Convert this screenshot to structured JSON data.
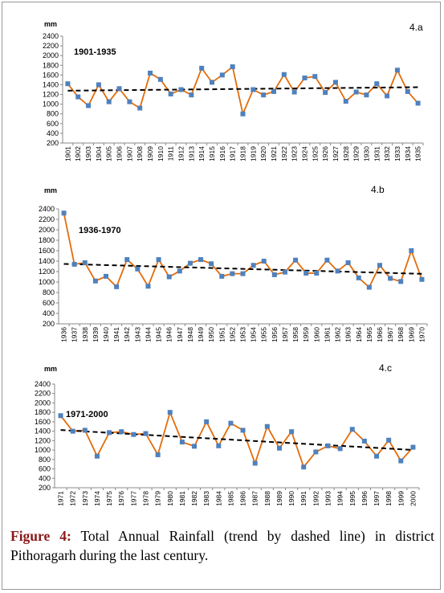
{
  "chart_data": [
    {
      "type": "line",
      "panel": "4.a",
      "subtitle": "1901-1935",
      "y_label": "mm",
      "categories": [
        "1901",
        "1902",
        "1903",
        "1904",
        "1905",
        "1906",
        "1907",
        "1908",
        "1909",
        "1910",
        "1911",
        "1912",
        "1913",
        "1914",
        "1915",
        "1916",
        "1917",
        "1918",
        "1919",
        "1920",
        "1921",
        "1922",
        "1923",
        "1924",
        "1925",
        "1926",
        "1927",
        "1928",
        "1929",
        "1930",
        "1931",
        "1932",
        "1933",
        "1934",
        "1935"
      ],
      "values": [
        1420,
        1150,
        970,
        1400,
        1050,
        1320,
        1050,
        920,
        1640,
        1510,
        1210,
        1300,
        1190,
        1740,
        1450,
        1600,
        1770,
        800,
        1300,
        1190,
        1260,
        1610,
        1250,
        1540,
        1570,
        1240,
        1450,
        1060,
        1250,
        1190,
        1420,
        1170,
        1700,
        1260,
        1020
      ],
      "color": "#e36c09",
      "marker_color": "#4f81bd",
      "trend_color": "#000000",
      "trend": true,
      "ylim": [
        200,
        2400
      ],
      "yticks": [
        200,
        400,
        600,
        800,
        1000,
        1200,
        1400,
        1600,
        1800,
        2000,
        2200,
        2400
      ]
    },
    {
      "type": "line",
      "panel": "4.b",
      "subtitle": "1936-1970",
      "y_label": "mm",
      "categories": [
        "1936",
        "1937",
        "1938",
        "1939",
        "1940",
        "1941",
        "1942",
        "1943",
        "1944",
        "1945",
        "1946",
        "1947",
        "1948",
        "1949",
        "1950",
        "1951",
        "1952",
        "1953",
        "1954",
        "1955",
        "1956",
        "1957",
        "1958",
        "1959",
        "1960",
        "1961",
        "1962",
        "1963",
        "1964",
        "1965",
        "1966",
        "1967",
        "1968",
        "1969",
        "1970"
      ],
      "values": [
        2320,
        1340,
        1370,
        1020,
        1110,
        910,
        1430,
        1250,
        920,
        1430,
        1100,
        1210,
        1360,
        1430,
        1350,
        1110,
        1160,
        1160,
        1320,
        1400,
        1140,
        1190,
        1420,
        1170,
        1170,
        1420,
        1210,
        1370,
        1080,
        900,
        1320,
        1070,
        1010,
        1600,
        1050
      ],
      "color": "#e36c09",
      "marker_color": "#4f81bd",
      "trend_color": "#000000",
      "trend": true,
      "ylim": [
        200,
        2400
      ],
      "yticks": [
        200,
        400,
        600,
        800,
        1000,
        1200,
        1400,
        1600,
        1800,
        2000,
        2200,
        2400
      ]
    },
    {
      "type": "line",
      "panel": "4.c",
      "subtitle": "1971-2000",
      "y_label": "mm",
      "categories": [
        "1971",
        "1972",
        "1973",
        "1974",
        "1975",
        "1976",
        "1977",
        "1978",
        "1979",
        "1980",
        "1981",
        "1982",
        "1983",
        "1984",
        "1985",
        "1986",
        "1987",
        "1988",
        "1989",
        "1990",
        "1991",
        "1992",
        "1993",
        "1994",
        "1995",
        "1996",
        "1997",
        "1998",
        "1999",
        "2000"
      ],
      "values": [
        1730,
        1400,
        1420,
        870,
        1370,
        1390,
        1330,
        1350,
        900,
        1800,
        1170,
        1080,
        1600,
        1090,
        1570,
        1420,
        720,
        1500,
        1040,
        1390,
        640,
        960,
        1090,
        1030,
        1440,
        1190,
        870,
        1210,
        770,
        1060
      ],
      "color": "#e36c09",
      "marker_color": "#4f81bd",
      "trend_color": "#000000",
      "trend": true,
      "ylim": [
        200,
        2400
      ],
      "yticks": [
        200,
        400,
        600,
        800,
        1000,
        1200,
        1400,
        1600,
        1800,
        2000,
        2200,
        2400
      ]
    }
  ],
  "caption": {
    "label": "Figure 4:",
    "text": "Total Annual Rainfall (trend by dashed line) in district Pithoragarh during the last century."
  }
}
